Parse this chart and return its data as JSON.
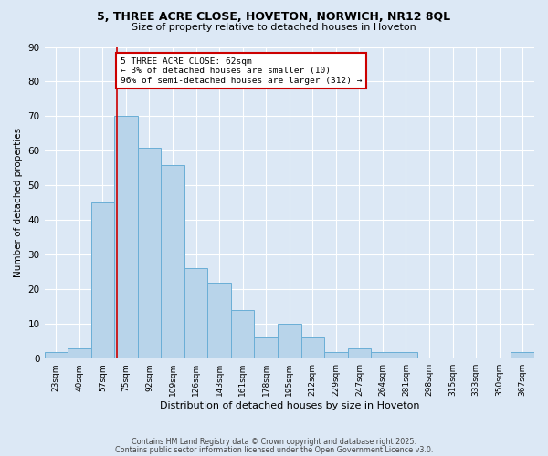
{
  "title": "5, THREE ACRE CLOSE, HOVETON, NORWICH, NR12 8QL",
  "subtitle": "Size of property relative to detached houses in Hoveton",
  "xlabel": "Distribution of detached houses by size in Hoveton",
  "ylabel": "Number of detached properties",
  "bar_labels": [
    "23sqm",
    "40sqm",
    "57sqm",
    "75sqm",
    "92sqm",
    "109sqm",
    "126sqm",
    "143sqm",
    "161sqm",
    "178sqm",
    "195sqm",
    "212sqm",
    "229sqm",
    "247sqm",
    "264sqm",
    "281sqm",
    "298sqm",
    "315sqm",
    "333sqm",
    "350sqm",
    "367sqm"
  ],
  "bar_values": [
    2,
    3,
    45,
    70,
    61,
    56,
    26,
    22,
    14,
    6,
    10,
    6,
    2,
    3,
    2,
    2,
    0,
    0,
    0,
    0,
    2
  ],
  "bar_color": "#b8d4ea",
  "bar_edge_color": "#6aaed6",
  "background_color": "#dce8f5",
  "grid_color": "#ffffff",
  "ylim": [
    0,
    90
  ],
  "yticks": [
    0,
    10,
    20,
    30,
    40,
    50,
    60,
    70,
    80,
    90
  ],
  "property_label": "5 THREE ACRE CLOSE: 62sqm",
  "pct_smaller": "3% of detached houses are smaller (10)",
  "pct_larger": "96% of semi-detached houses are larger (312)",
  "vline_x_index": 2.62,
  "annotation_box_color": "#ffffff",
  "annotation_box_edge": "#cc0000",
  "vline_color": "#cc0000",
  "footer1": "Contains HM Land Registry data © Crown copyright and database right 2025.",
  "footer2": "Contains public sector information licensed under the Open Government Licence v3.0."
}
